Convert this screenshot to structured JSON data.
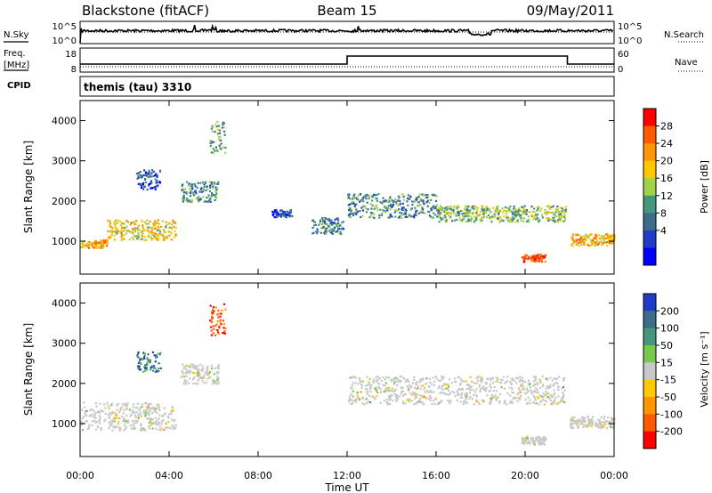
{
  "header": {
    "radar": "Blackstone (fitACF)",
    "beam": "Beam 15",
    "date": "09/May/2011"
  },
  "strips": {
    "nsky_label": "N.Sky",
    "nsearch_label": "N.Search",
    "noise_tick_top": "10^5",
    "noise_tick_bottom": "10^0",
    "freq_label_line1": "Freq.",
    "freq_label_line2": "[MHz]",
    "freq_ticks": [
      "18",
      "8"
    ],
    "nave_label": "Nave",
    "nave_ticks": [
      "60",
      "0"
    ],
    "cpid_label": "CPID",
    "cpid_value": "themis (tau) 3310"
  },
  "colorbars": {
    "power": {
      "label": "Power [dB]",
      "ticks": [
        "28",
        "24",
        "20",
        "16",
        "12",
        "8",
        "4"
      ],
      "colors": [
        "#ff0000",
        "#ff5a00",
        "#ff9600",
        "#ffc800",
        "#a0d24b",
        "#46967d",
        "#3c6e8c",
        "#1e3cc8",
        "#0000ff"
      ]
    },
    "velocity": {
      "label": "Velocity [m s⁻¹]",
      "ticks": [
        "200",
        "100",
        "50",
        "15",
        "-15",
        "-50",
        "-100",
        "-200"
      ],
      "colors": [
        "#1e3cc8",
        "#3c6e8c",
        "#46967d",
        "#78c850",
        "#c8c8c8",
        "#ffc800",
        "#ff9600",
        "#ff5a00",
        "#ff0000"
      ]
    }
  },
  "axes": {
    "ylabel": "Slant Range [km]",
    "xlabel": "Time UT",
    "xticks": [
      "00:00",
      "04:00",
      "08:00",
      "12:00",
      "16:00",
      "20:00",
      "00:00"
    ],
    "yticks": [
      "1000",
      "2000",
      "3000",
      "4000"
    ]
  },
  "chart_data": [
    {
      "type": "heatmap",
      "panel": "power",
      "x_range_hours": [
        0,
        24
      ],
      "y_range_km": [
        180,
        4500
      ],
      "scale": [
        0,
        30
      ],
      "scatter_regions": [
        {
          "t": [
            0.0,
            1.2
          ],
          "r": [
            850,
            1050
          ],
          "v": 20
        },
        {
          "t": [
            1.2,
            4.3
          ],
          "r": [
            1050,
            1550
          ],
          "v": 18
        },
        {
          "t": [
            2.5,
            3.6
          ],
          "r": [
            2300,
            2800
          ],
          "v": 6
        },
        {
          "t": [
            4.5,
            6.2
          ],
          "r": [
            2000,
            2500
          ],
          "v": 10
        },
        {
          "t": [
            5.8,
            6.5
          ],
          "r": [
            3200,
            4000
          ],
          "v": 12
        },
        {
          "t": [
            8.6,
            9.5
          ],
          "r": [
            1600,
            1800
          ],
          "v": 6
        },
        {
          "t": [
            10.4,
            11.8
          ],
          "r": [
            1200,
            1600
          ],
          "v": 10
        },
        {
          "t": [
            12.0,
            16.0
          ],
          "r": [
            1600,
            2200
          ],
          "v": 10
        },
        {
          "t": [
            16.0,
            21.8
          ],
          "r": [
            1500,
            1900
          ],
          "v": 14
        },
        {
          "t": [
            19.8,
            20.9
          ],
          "r": [
            500,
            700
          ],
          "v": 26
        },
        {
          "t": [
            22.0,
            24.0
          ],
          "r": [
            900,
            1200
          ],
          "v": 20
        }
      ]
    },
    {
      "type": "heatmap",
      "panel": "velocity",
      "x_range_hours": [
        0,
        24
      ],
      "y_range_km": [
        180,
        4500
      ],
      "scale": [
        -200,
        200
      ],
      "scatter_regions": [
        {
          "t": [
            0.0,
            4.3
          ],
          "r": [
            850,
            1550
          ],
          "v": 0
        },
        {
          "t": [
            2.5,
            3.6
          ],
          "r": [
            2300,
            2800
          ],
          "v": 120
        },
        {
          "t": [
            4.5,
            6.2
          ],
          "r": [
            2000,
            2500
          ],
          "v": 0
        },
        {
          "t": [
            5.8,
            6.5
          ],
          "r": [
            3200,
            4000
          ],
          "v": -150
        },
        {
          "t": [
            12.0,
            21.8
          ],
          "r": [
            1500,
            2200
          ],
          "v": 0
        },
        {
          "t": [
            19.8,
            20.9
          ],
          "r": [
            500,
            700
          ],
          "v": 0
        },
        {
          "t": [
            22.0,
            24.0
          ],
          "r": [
            900,
            1200
          ],
          "v": 0
        }
      ]
    }
  ]
}
